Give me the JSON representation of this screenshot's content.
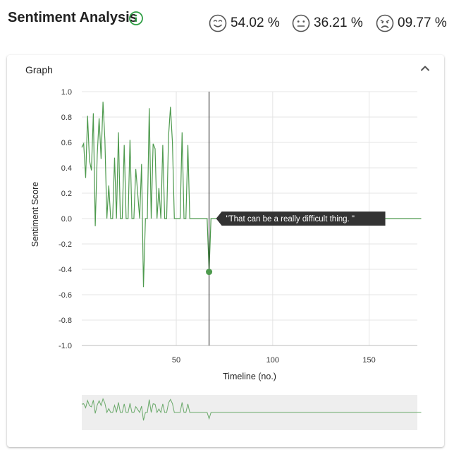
{
  "header": {
    "title": "Sentiment Analysis",
    "stats": [
      {
        "icon": "smile-icon",
        "value": "54.02 %"
      },
      {
        "icon": "neutral-face-icon",
        "value": "36.21 %"
      },
      {
        "icon": "frown-face-icon",
        "value": "09.77 %"
      }
    ]
  },
  "card": {
    "title": "Graph"
  },
  "tooltip": {
    "text": "\"That can be a really difficult thing. \""
  },
  "colors": {
    "line": "#4e9a4e",
    "info": "#2e9e44",
    "brush_bg": "#eeeeee"
  },
  "chart_data": {
    "type": "line",
    "xlabel": "Timeline (no.)",
    "ylabel": "Sentiment Score",
    "xlim": [
      1,
      175
    ],
    "ylim": [
      -1.0,
      1.0
    ],
    "grid": true,
    "x_ticks": [
      50,
      100,
      150
    ],
    "y_ticks": [
      1.0,
      0.8,
      0.6,
      0.4,
      0.2,
      0.0,
      -0.2,
      -0.4,
      -0.6,
      -0.8,
      -1.0
    ],
    "y_tick_labels": [
      "1.0",
      "0.8",
      "0.6",
      "0.4",
      "0.2",
      "0.0",
      "-0.2",
      "-0.4",
      "-0.6",
      "-0.8",
      "-1.0"
    ],
    "cursor_x": 67,
    "highlight_point": {
      "x": 67,
      "y": -0.42
    },
    "series": [
      {
        "values": [
          0.56,
          0.59,
          0.32,
          0.81,
          0.46,
          0.38,
          0.83,
          -0.06,
          0.5,
          0.79,
          0.47,
          0.92,
          0.62,
          0.0,
          0.26,
          0.0,
          0.0,
          0.48,
          0.0,
          0.68,
          0.0,
          0.0,
          0.58,
          0.0,
          0.0,
          0.62,
          0.0,
          0.0,
          0.39,
          0.2,
          0.0,
          0.43,
          -0.54,
          0.0,
          0.0,
          0.87,
          0.0,
          0.59,
          0.55,
          0.0,
          0.24,
          0.0,
          0.58,
          0.0,
          0.0,
          0.65,
          0.88,
          0.6,
          0.0,
          0.0,
          0.0,
          0.0,
          0.68,
          0.0,
          0.0,
          0.58,
          0.0,
          0.0,
          0.0,
          0.0,
          0.0,
          0.0,
          0.0,
          0.0,
          0.0,
          0.0,
          -0.42,
          0.0,
          0.0,
          0.0,
          0.0,
          0.0,
          0.0,
          0.0,
          0.0,
          0.0,
          0.0,
          0.0,
          0.0,
          0.0,
          0.0,
          0.0,
          0.0,
          0.0,
          0.0,
          0.0,
          0.0,
          0.0,
          0.0,
          0.0,
          0.0,
          0.0,
          0.0,
          0.0,
          0.0,
          0.0,
          0.0,
          0.0,
          0.0,
          0.0,
          0.0,
          0.0,
          0.0,
          0.0,
          0.0,
          0.0,
          0.0,
          0.0,
          0.0,
          0.0,
          0.0,
          0.0,
          0.0,
          0.0,
          0.0,
          0.0,
          0.0,
          0.0,
          0.0,
          0.0,
          0.0,
          0.0,
          0.0,
          0.0,
          0.0,
          0.0,
          0.0,
          0.0,
          0.0,
          0.0,
          0.0,
          0.0,
          0.0,
          0.0,
          0.0,
          0.0,
          0.0,
          0.0,
          0.0,
          0.0,
          0.0,
          0.0,
          0.0,
          0.0,
          0.0,
          0.0,
          0.0,
          0.0,
          0.0,
          0.0,
          0.0,
          0.0,
          0.0,
          0.0,
          0.0,
          0.0,
          0.0,
          0.0,
          0.0,
          0.0,
          0.0,
          0.0,
          0.0,
          0.0,
          0.0,
          0.0,
          0.0,
          0.0,
          0.0,
          0.0,
          0.0,
          0.0,
          0.0,
          0.0,
          0.0,
          0.0,
          0.0
        ]
      }
    ]
  }
}
